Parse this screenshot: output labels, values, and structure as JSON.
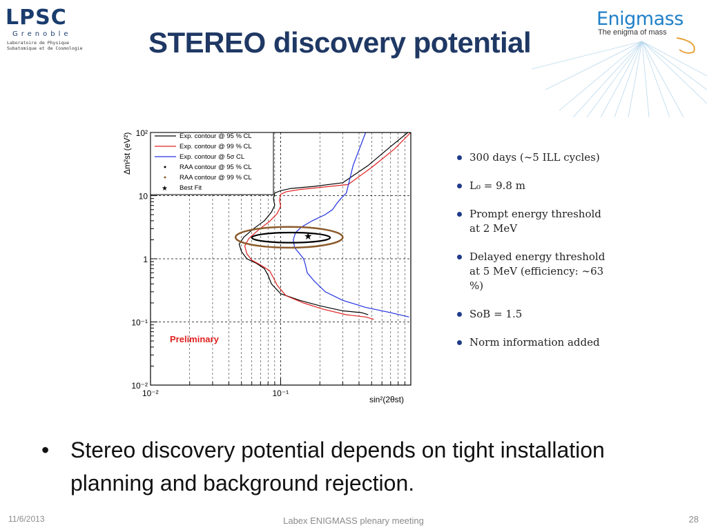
{
  "slide": {
    "title": "STEREO discovery potential",
    "logo_left": {
      "name": "LPSC",
      "city": "Grenoble",
      "line1": "Laboratoire de Physique",
      "line2": "Subatomique et de Cosmologie"
    },
    "logo_right": {
      "name": "Enigmass",
      "tagline": "The enigma of mass"
    },
    "side_bullets": [
      "300 days (∼5 ILL cycles)",
      "L₀ = 9.8 m",
      "Prompt energy threshold at 2 MeV",
      "Delayed energy threshold at 5 MeV (efficiency: ∼63 %)",
      "SoB = 1.5",
      "Norm information added"
    ],
    "main_bullet": "Stereo discovery potential depends on tight installation planning and background rejection.",
    "footer": {
      "date": "11/6/2013",
      "center": "Labex ENIGMASS plenary meeting",
      "page": "28"
    }
  },
  "chart_data": {
    "type": "line",
    "xscale": "log",
    "yscale": "log",
    "xlim": [
      0.01,
      1
    ],
    "ylim": [
      0.01,
      100
    ],
    "xlabel": "sin²(2θst)",
    "ylabel": "Δm²st (eV²)",
    "x_tick_labels": [
      "10⁻²",
      "10⁻¹"
    ],
    "y_tick_labels": [
      "10⁻²",
      "10⁻¹",
      "1",
      "10",
      "10²"
    ],
    "grid": true,
    "legend_position": "top-left",
    "annotation": "Preliminary",
    "colors": {
      "exp95": "#000000",
      "exp99": "#e02020",
      "exp5s": "#2030e0",
      "raa": "#8b5a2b",
      "annotation": "#e02020"
    },
    "legend": [
      "Exp. contour @ 95 % CL",
      "Exp. contour @ 99 % CL",
      "Exp. contour @ 5σ CL",
      "RAA contour @ 95 % CL",
      "RAA contour @ 99 % CL",
      "Best Fit"
    ],
    "series": [
      {
        "name": "Exp. contour @ 95 % CL",
        "x": [
          0.47,
          0.42,
          0.3,
          0.2,
          0.14,
          0.1,
          0.085,
          0.08,
          0.075,
          0.065,
          0.055,
          0.05,
          0.048,
          0.052,
          0.062,
          0.075,
          0.085,
          0.09,
          0.088,
          0.09,
          0.1,
          0.12,
          0.18,
          0.3,
          0.47,
          0.7,
          0.95
        ],
        "y": [
          0.13,
          0.14,
          0.15,
          0.18,
          0.22,
          0.28,
          0.4,
          0.55,
          0.7,
          0.85,
          1.0,
          1.3,
          1.7,
          2.2,
          3.0,
          4.0,
          5.5,
          7.0,
          9.0,
          11.0,
          12.0,
          13.0,
          14.0,
          16.0,
          30.0,
          60.0,
          100.0
        ]
      },
      {
        "name": "Exp. contour @ 99 % CL",
        "x": [
          0.52,
          0.45,
          0.32,
          0.21,
          0.15,
          0.11,
          0.094,
          0.088,
          0.082,
          0.07,
          0.06,
          0.055,
          0.053,
          0.057,
          0.068,
          0.082,
          0.094,
          0.1,
          0.098,
          0.1,
          0.11,
          0.14,
          0.2,
          0.33,
          0.5,
          0.75,
          1.0
        ],
        "y": [
          0.11,
          0.12,
          0.13,
          0.16,
          0.2,
          0.26,
          0.38,
          0.5,
          0.65,
          0.8,
          0.95,
          1.2,
          1.6,
          2.1,
          2.9,
          3.9,
          5.2,
          6.8,
          8.5,
          10.5,
          11.5,
          12.5,
          13.5,
          15.0,
          28.0,
          55.0,
          100.0
        ]
      },
      {
        "name": "Exp. contour @ 5σ CL",
        "x": [
          0.97,
          0.7,
          0.45,
          0.3,
          0.22,
          0.18,
          0.16,
          0.155,
          0.15,
          0.14,
          0.128,
          0.125,
          0.13,
          0.145,
          0.175,
          0.22,
          0.25,
          0.27,
          0.29,
          0.32,
          0.36,
          0.45
        ],
        "y": [
          0.12,
          0.14,
          0.17,
          0.22,
          0.3,
          0.45,
          0.6,
          0.8,
          1.0,
          1.2,
          1.5,
          2.0,
          2.6,
          3.2,
          4.0,
          5.0,
          6.0,
          7.5,
          9.0,
          11.0,
          30.0,
          100.0
        ]
      }
    ],
    "raa_contours": [
      {
        "name": "RAA contour @ 95 % CL",
        "x_range": [
          0.06,
          0.24
        ],
        "y_range": [
          1.8,
          2.6
        ]
      },
      {
        "name": "RAA contour @ 99 % CL",
        "x_range": [
          0.045,
          0.3
        ],
        "y_range": [
          1.5,
          3.2
        ]
      }
    ],
    "best_fit": {
      "x": 0.16,
      "y": 2.3
    }
  }
}
